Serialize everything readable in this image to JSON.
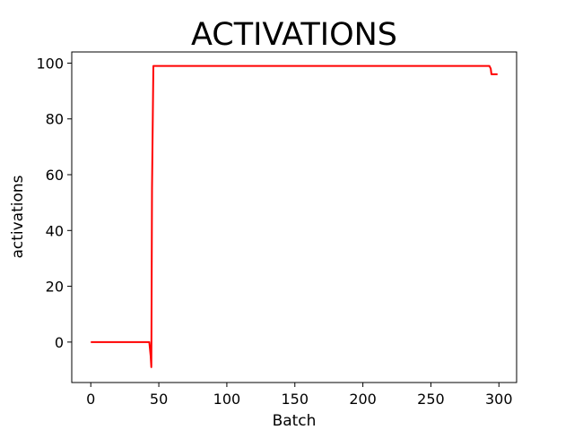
{
  "chart_data": {
    "type": "line",
    "title": "ACTIVATIONS",
    "xlabel": "Batch",
    "ylabel": "activations",
    "xlim": [
      -14,
      313
    ],
    "ylim": [
      -14.5,
      104
    ],
    "xticks": [
      0,
      50,
      100,
      150,
      200,
      250,
      300
    ],
    "yticks": [
      0,
      20,
      40,
      60,
      80,
      100
    ],
    "grid": false,
    "series": [
      {
        "color": "#ff0000",
        "x": [
          0,
          43,
          44,
          44.5,
          45,
          46,
          293,
          294,
          294.5,
          299
        ],
        "y": [
          0,
          0,
          -5,
          -9,
          55,
          99,
          99,
          98,
          96,
          96
        ]
      }
    ]
  }
}
